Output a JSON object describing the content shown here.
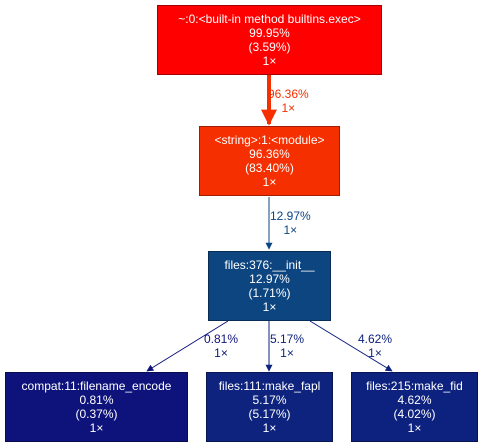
{
  "nodes": [
    {
      "id": "exec",
      "name": "~:0:<built-in method builtins.exec>",
      "total": "99.95%",
      "self": "(3.59%)",
      "calls": "1×",
      "color": "#ff0000"
    },
    {
      "id": "module",
      "name": "<string>:1:<module>",
      "total": "96.36%",
      "self": "(83.40%)",
      "calls": "1×",
      "color": "#f52f00"
    },
    {
      "id": "init",
      "name": "files:376:__init__",
      "total": "12.97%",
      "self": "(1.71%)",
      "calls": "1×",
      "color": "#0d4581"
    },
    {
      "id": "fname",
      "name": "compat:11:filename_encode",
      "total": "0.81%",
      "self": "(0.37%)",
      "calls": "1×",
      "color": "#0e137b"
    },
    {
      "id": "fapl",
      "name": "files:111:make_fapl",
      "total": "5.17%",
      "self": "(5.17%)",
      "calls": "1×",
      "color": "#0d237e"
    },
    {
      "id": "fid",
      "name": "files:215:make_fid",
      "total": "4.62%",
      "self": "(4.02%)",
      "calls": "1×",
      "color": "#0d217e"
    }
  ],
  "edges": [
    {
      "from": "exec",
      "to": "module",
      "pct": "96.36%",
      "calls": "1×",
      "color": "#f52f00"
    },
    {
      "from": "module",
      "to": "init",
      "pct": "12.97%",
      "calls": "1×",
      "color": "#0d4581"
    },
    {
      "from": "init",
      "to": "fname",
      "pct": "0.81%",
      "calls": "1×",
      "color": "#0e137b"
    },
    {
      "from": "init",
      "to": "fapl",
      "pct": "5.17%",
      "calls": "1×",
      "color": "#0d237e"
    },
    {
      "from": "init",
      "to": "fid",
      "pct": "4.62%",
      "calls": "1×",
      "color": "#0d217e"
    }
  ]
}
